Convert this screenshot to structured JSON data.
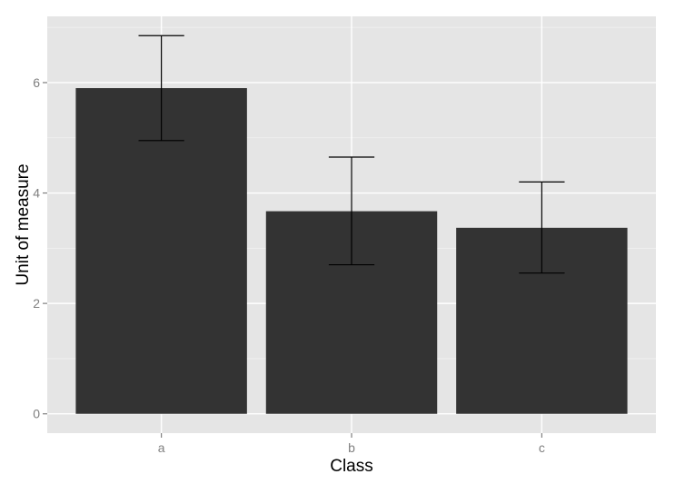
{
  "chart_data": {
    "type": "bar",
    "categories": [
      "a",
      "b",
      "c"
    ],
    "values": [
      5.9,
      3.67,
      3.37
    ],
    "error_bars": [
      {
        "low": 4.95,
        "high": 6.85
      },
      {
        "low": 2.7,
        "high": 4.65
      },
      {
        "low": 2.55,
        "high": 4.2
      }
    ],
    "xlabel": "Class",
    "ylabel": "Unit of measure",
    "ylim": [
      -0.35,
      7.2
    ],
    "yticks": [
      0,
      2,
      4,
      6
    ],
    "grid": true,
    "legend": "none",
    "colors": {
      "bar": "#333333",
      "panel": "#e5e5e5",
      "grid_major": "#ffffff",
      "grid_minor": "#f2f2f2",
      "error_bar": "#000000",
      "tick": "#7f7f7f"
    }
  }
}
